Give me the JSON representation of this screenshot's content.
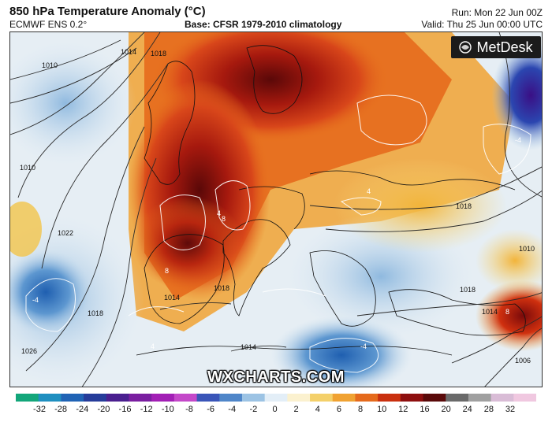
{
  "header": {
    "title": "850 hPa Temperature Anomaly (°C)",
    "subtitle": "ECMWF ENS 0.2°",
    "base": "Base: CFSR 1979-2010 climatology",
    "run": "Run: Mon 22 Jun 00Z",
    "valid": "Valid: Thu 25 Jun 00:00 UTC"
  },
  "logo": {
    "text": "MetDesk",
    "icon": "metdesk-logo-icon"
  },
  "watermark": "WXCHARTS.COM",
  "map": {
    "isobar_labels": [
      "1010",
      "1014",
      "1018",
      "1010",
      "1022",
      "1026",
      "1018",
      "1014",
      "1018",
      "1014",
      "1018",
      "1010",
      "1006",
      "1014",
      "1018"
    ],
    "anomaly_labels": [
      "4",
      "8",
      "8",
      "4",
      "-4",
      "4",
      "-4",
      "8",
      "-4"
    ],
    "colors": {
      "deep_red": "#7a0a0a",
      "red": "#c0240f",
      "orange": "#e8741c",
      "yellow": "#f2c44a",
      "pale": "#fbf3d6",
      "light_blue": "#cfe2f0",
      "blue": "#3b7fc4",
      "dark_blue": "#1f4fa0",
      "purple": "#4b1b8f"
    }
  },
  "colorbar": {
    "ticks": [
      "-32",
      "-28",
      "-24",
      "-20",
      "-16",
      "-12",
      "-10",
      "-8",
      "-6",
      "-4",
      "-2",
      "0",
      "2",
      "4",
      "6",
      "8",
      "10",
      "12",
      "16",
      "20",
      "24",
      "28",
      "32"
    ],
    "colors": [
      "#13a67a",
      "#1f8fc0",
      "#2063b5",
      "#263c9a",
      "#4a1f8f",
      "#7a1ea0",
      "#a21fb5",
      "#c448c9",
      "#3a55b8",
      "#4f86c9",
      "#9cc3e4",
      "#e3eef7",
      "#fbf1cf",
      "#f4d06a",
      "#f0a232",
      "#e56a1c",
      "#c9300f",
      "#8e0f0f",
      "#5a0a0a",
      "#6a6a6a",
      "#a0a0a0",
      "#d9bcd6",
      "#f0c8e0"
    ]
  }
}
